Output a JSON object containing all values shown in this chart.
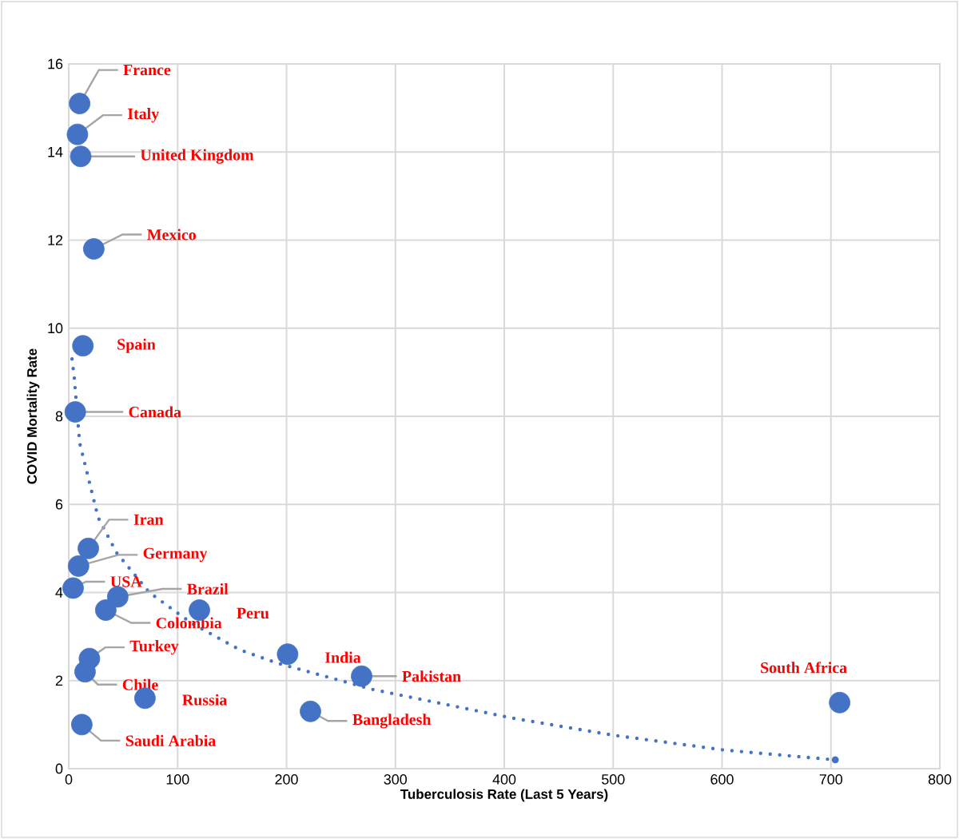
{
  "chart_data": {
    "type": "scatter",
    "xlabel": "Tuberculosis Rate (Last 5 Years)",
    "ylabel": "COVID Mortality Rate",
    "xlim": [
      0,
      800
    ],
    "xticks": [
      0,
      100,
      200,
      300,
      400,
      500,
      600,
      700,
      800
    ],
    "ylim": [
      0,
      16
    ],
    "yticks": [
      0,
      2,
      4,
      6,
      8,
      10,
      12,
      14,
      16
    ],
    "grid": true,
    "legend": false,
    "series": [
      {
        "color": "#4472c4",
        "marker": "circle",
        "x": [
          10,
          8,
          11,
          23,
          13,
          6,
          18,
          9,
          4,
          45,
          34,
          120,
          19,
          15,
          70,
          12,
          201,
          222,
          269,
          708
        ],
        "values": [
          15.1,
          14.4,
          13.9,
          11.8,
          9.6,
          8.1,
          5.0,
          4.6,
          4.1,
          3.9,
          3.6,
          3.6,
          2.5,
          2.2,
          1.6,
          1.0,
          2.6,
          1.3,
          2.1,
          1.5
        ]
      },
      {
        "type": "line",
        "color": "#4472c4",
        "marker": "none",
        "line_style": "dotted",
        "x": [
          3,
          5,
          10,
          18,
          27,
          44,
          74,
          113,
          157,
          191,
          279,
          407,
          500,
          603,
          704
        ],
        "values": [
          9.3,
          8.9,
          7.4,
          6.6,
          5.7,
          4.9,
          4.0,
          3.3,
          2.7,
          2.4,
          1.8,
          1.15,
          0.76,
          0.42,
          0.2
        ]
      }
    ],
    "annotations": [
      {
        "text": "France",
        "x": 10,
        "y": 15.1
      },
      {
        "text": "Italy",
        "x": 8,
        "y": 14.4
      },
      {
        "text": "United Kingdom",
        "x": 11,
        "y": 13.9
      },
      {
        "text": "Mexico",
        "x": 23,
        "y": 11.8
      },
      {
        "text": "Spain",
        "x": 13,
        "y": 9.6
      },
      {
        "text": "Canada",
        "x": 6,
        "y": 8.1
      },
      {
        "text": "Iran",
        "x": 18,
        "y": 5.0
      },
      {
        "text": "Germany",
        "x": 9,
        "y": 4.6
      },
      {
        "text": "USA",
        "x": 4,
        "y": 4.1
      },
      {
        "text": "Brazil",
        "x": 45,
        "y": 3.9
      },
      {
        "text": "Colombia",
        "x": 34,
        "y": 3.6
      },
      {
        "text": "Peru",
        "x": 120,
        "y": 3.6
      },
      {
        "text": "Turkey",
        "x": 19,
        "y": 2.5
      },
      {
        "text": "Chile",
        "x": 15,
        "y": 2.2
      },
      {
        "text": "Russia",
        "x": 70,
        "y": 1.6
      },
      {
        "text": "Saudi Arabia",
        "x": 12,
        "y": 1.0
      },
      {
        "text": "India",
        "x": 201,
        "y": 2.6
      },
      {
        "text": "Bangladesh",
        "x": 222,
        "y": 1.3
      },
      {
        "text": "Pakistan",
        "x": 269,
        "y": 2.1
      },
      {
        "text": "South Africa",
        "x": 708,
        "y": 1.5
      }
    ]
  }
}
